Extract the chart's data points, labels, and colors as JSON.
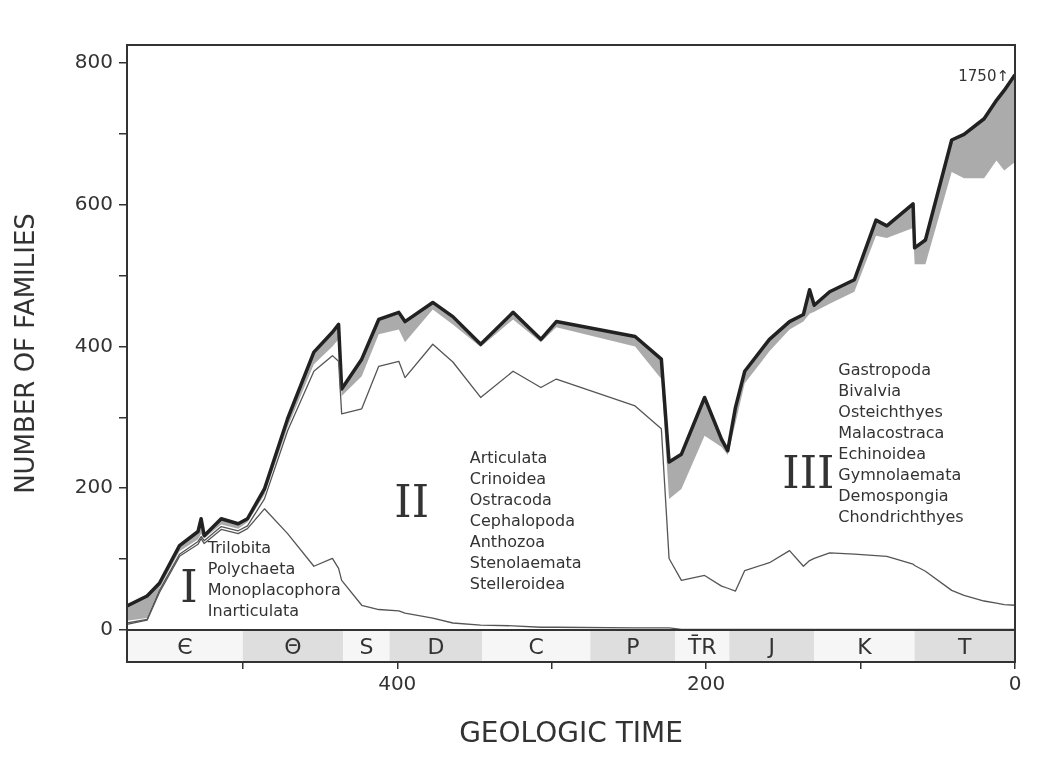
{
  "chart_data": {
    "type": "line",
    "xlabel": "GEOLOGIC TIME",
    "ylabel": "NUMBER OF FAMILIES",
    "xlim": [
      575,
      0
    ],
    "xticks": [
      {
        "value": 500,
        "label": null
      },
      400,
      {
        "value": 300,
        "label": null
      },
      200,
      {
        "value": 100,
        "label": null
      },
      0
    ],
    "ylim": [
      -45,
      825
    ],
    "yticks": [
      0,
      {
        "value": 100,
        "label": null
      },
      200,
      {
        "value": 300,
        "label": null
      },
      400,
      {
        "value": 500,
        "label": null
      },
      600,
      {
        "value": 700,
        "label": null
      },
      800
    ],
    "grid": false,
    "legend": false,
    "marker": "none",
    "x": [
      575,
      562,
      554,
      541,
      529,
      527,
      525,
      514,
      503,
      497,
      486,
      471,
      454,
      442,
      438,
      436,
      423,
      412,
      399,
      395,
      377,
      364,
      346,
      325,
      307,
      297,
      246,
      229,
      224,
      216,
      201,
      190,
      186,
      181,
      175,
      159,
      146,
      137,
      133,
      130,
      120,
      104,
      90,
      83,
      66,
      65,
      58,
      41,
      33,
      20,
      12,
      7,
      0
    ],
    "series": [
      {
        "color": "#555555",
        "values": [
          8,
          14,
          53,
          104,
          121,
          129,
          122,
          142,
          136,
          143,
          171,
          136,
          90,
          101,
          87,
          70,
          35,
          29,
          27,
          24,
          17,
          10,
          7,
          6,
          4,
          4,
          3,
          3,
          3,
          1,
          1,
          1,
          1,
          1,
          1,
          1,
          1,
          1,
          1,
          1,
          1,
          1,
          1,
          1,
          1,
          1,
          1,
          1,
          1,
          1,
          1,
          1,
          1
        ]
      },
      {
        "color": "#555555",
        "values": [
          10,
          15,
          56,
          107,
          125,
          132,
          126,
          146,
          140,
          147,
          185,
          281,
          365,
          387,
          379,
          305,
          312,
          372,
          379,
          356,
          403,
          378,
          328,
          365,
          342,
          354,
          316,
          284,
          101,
          70,
          77,
          62,
          59,
          55,
          84,
          95,
          112,
          90,
          98,
          101,
          109,
          107,
          105,
          104,
          93,
          91,
          83,
          56,
          49,
          41,
          38,
          36,
          35
        ]
      },
      {
        "color": "#222222",
        "values": [
          34,
          48,
          66,
          119,
          139,
          157,
          133,
          157,
          150,
          157,
          199,
          298,
          392,
          420,
          431,
          340,
          382,
          438,
          448,
          435,
          462,
          442,
          403,
          448,
          410,
          435,
          414,
          382,
          237,
          248,
          328,
          269,
          253,
          314,
          365,
          410,
          435,
          445,
          480,
          458,
          477,
          494,
          578,
          570,
          601,
          539,
          550,
          691,
          699,
          721,
          747,
          761,
          783
        ],
        "lower": [
          13,
          17,
          59,
          111,
          128,
          136,
          129,
          149,
          143,
          152,
          191,
          286,
          375,
          400,
          410,
          330,
          358,
          417,
          424,
          406,
          452,
          431,
          399,
          438,
          406,
          427,
          400,
          354,
          185,
          199,
          274,
          258,
          247,
          292,
          348,
          393,
          424,
          435,
          446,
          449,
          460,
          477,
          556,
          553,
          567,
          516,
          516,
          646,
          637,
          637,
          662,
          648,
          660
        ],
        "upper": [
          34,
          48,
          66,
          119,
          139,
          157,
          133,
          157,
          150,
          157,
          199,
          298,
          392,
          420,
          431,
          340,
          382,
          438,
          448,
          435,
          462,
          442,
          403,
          448,
          410,
          435,
          414,
          382,
          237,
          248,
          328,
          269,
          253,
          314,
          365,
          410,
          435,
          445,
          480,
          458,
          477,
          494,
          578,
          570,
          601,
          539,
          550,
          691,
          699,
          721,
          747,
          761,
          783
        ]
      }
    ],
    "ref_lines": [
      {
        "axis": "y",
        "value": 0
      }
    ],
    "bands": [
      {
        "axis": "x",
        "from": 575,
        "to": 500,
        "label": "Є",
        "color": "#f6f6f6"
      },
      {
        "axis": "x",
        "from": 500,
        "to": 435,
        "label": "Θ",
        "color": "#dedede"
      },
      {
        "axis": "x",
        "from": 435,
        "to": 405,
        "label": "S",
        "color": "#f6f6f6"
      },
      {
        "axis": "x",
        "from": 405,
        "to": 345,
        "label": "D",
        "color": "#dedede"
      },
      {
        "axis": "x",
        "from": 345,
        "to": 275,
        "label": "C",
        "color": "#f6f6f6"
      },
      {
        "axis": "x",
        "from": 275,
        "to": 220,
        "label": "P",
        "color": "#dedede"
      },
      {
        "axis": "x",
        "from": 220,
        "to": 185,
        "label": "T̄R",
        "color": "#f6f6f6"
      },
      {
        "axis": "x",
        "from": 185,
        "to": 130,
        "label": "J",
        "color": "#dedede"
      },
      {
        "axis": "x",
        "from": 130,
        "to": 65,
        "label": "K",
        "color": "#f6f6f6"
      },
      {
        "axis": "x",
        "from": 65,
        "to": 0,
        "label": "T",
        "color": "#dedede"
      }
    ],
    "annotations": [
      "I",
      "Trilobita\nPolychaeta\nMonoplacophora\nInarticulata",
      "II",
      "Articulata\nCrinoidea\nOstracoda\nCephalopoda\nAnthozoa\nStenolaemata\nStelleroidea",
      "III",
      "Gastropoda\nBivalvia\nOsteichthyes\nMalacostraca\nEchinoidea\nGymnolaemata\nDemospongia\nChondrichthyes",
      "1750↑"
    ]
  }
}
